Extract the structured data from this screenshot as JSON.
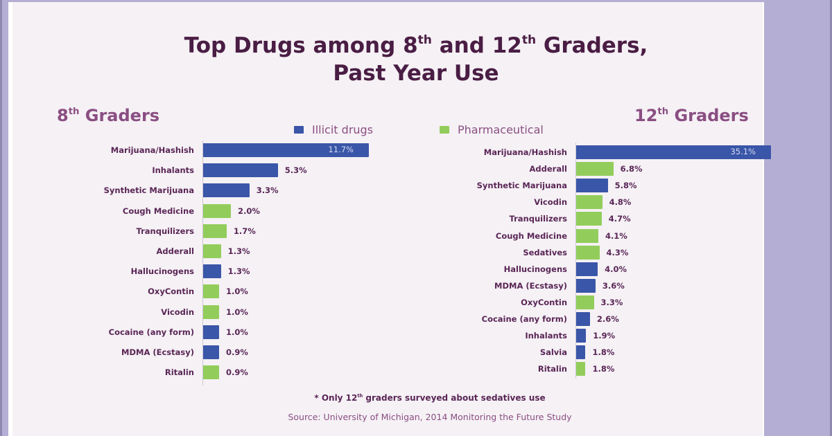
{
  "title": {
    "line1_prefix": "Top Drugs among  8",
    "line1_sup1": "th",
    "line1_mid": " and 12",
    "line1_sup2": "th",
    "line1_suffix": " Graders,",
    "line2": "Past Year Use"
  },
  "left_heading": {
    "num": "8",
    "sup": "th",
    "text": " Graders"
  },
  "right_heading": {
    "num": "12",
    "sup": "th",
    "text": " Graders"
  },
  "legend": {
    "illicit": {
      "label": "Illicit drugs",
      "color": "#3a56a8"
    },
    "pharmaceutical": {
      "label": "Pharmaceutical",
      "color": "#92cd5c"
    }
  },
  "footnote": {
    "prefix": "* Only 12",
    "sup": "th",
    "suffix": " graders surveyed about sedatives use"
  },
  "source": "Source: University of Michigan, 2014 Monitoring the Future Study",
  "chart_data": [
    {
      "type": "bar",
      "orientation": "horizontal",
      "title": "8th Graders",
      "xlabel": "",
      "ylabel": "",
      "unit": "%",
      "categories": [
        "Marijuana/Hashish",
        "Inhalants",
        "Synthetic Marijuana",
        "Cough Medicine",
        "Tranquilizers",
        "Adderall",
        "Hallucinogens",
        "OxyContin",
        "Vicodin",
        "Cocaine (any form)",
        "MDMA (Ecstasy)",
        "Ritalin"
      ],
      "values": [
        11.7,
        5.3,
        3.3,
        2.0,
        1.7,
        1.3,
        1.3,
        1.0,
        1.0,
        1.0,
        0.9,
        0.9
      ],
      "labels": [
        "11.7%",
        "5.3%",
        "3.3%",
        "2.0%",
        "1.7%",
        "1.3%",
        "1.3%",
        "1.0%",
        "1.0%",
        "1.0%",
        "0.9%",
        "0.9%"
      ],
      "types": [
        "illicit",
        "illicit",
        "illicit",
        "pharmaceutical",
        "pharmaceutical",
        "pharmaceutical",
        "illicit",
        "pharmaceutical",
        "pharmaceutical",
        "illicit",
        "illicit",
        "pharmaceutical"
      ],
      "legend": [
        "Illicit drugs",
        "Pharmaceutical"
      ],
      "legend_position": "top",
      "grid": false
    },
    {
      "type": "bar",
      "orientation": "horizontal",
      "title": "12th Graders",
      "xlabel": "",
      "ylabel": "",
      "unit": "%",
      "categories": [
        "Marijuana/Hashish",
        "Adderall",
        "Synthetic Marijuana",
        "Vicodin",
        "Tranquilizers",
        "Cough Medicine",
        "Sedatives",
        "Hallucinogens",
        "MDMA (Ecstasy)",
        "OxyContin",
        "Cocaine (any form)",
        "Inhalants",
        "Salvia",
        "Ritalin"
      ],
      "values": [
        35.1,
        6.8,
        5.8,
        4.8,
        4.7,
        4.1,
        4.3,
        4.0,
        3.6,
        3.3,
        2.6,
        1.9,
        1.8,
        1.8
      ],
      "labels": [
        "35.1%",
        "6.8%",
        "5.8%",
        "4.8%",
        "4.7%",
        "4.1%",
        "4.3%",
        "4.0%",
        "3.6%",
        "3.3%",
        "2.6%",
        "1.9%",
        "1.8%",
        "1.8%"
      ],
      "types": [
        "illicit",
        "pharmaceutical",
        "illicit",
        "pharmaceutical",
        "pharmaceutical",
        "pharmaceutical",
        "pharmaceutical",
        "illicit",
        "illicit",
        "pharmaceutical",
        "illicit",
        "illicit",
        "illicit",
        "pharmaceutical"
      ],
      "legend": [
        "Illicit drugs",
        "Pharmaceutical"
      ],
      "legend_position": "top",
      "grid": false
    }
  ]
}
